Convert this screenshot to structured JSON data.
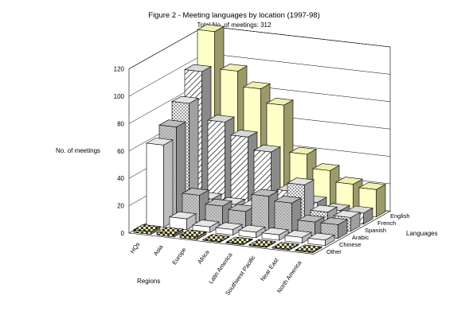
{
  "chart_data": {
    "type": "bar-3d",
    "title": "Figure 2 - Meeting languages by location (1997-98)",
    "subtitle": "Total No. of meetings: 312",
    "ylabel": "No. of meetings",
    "xlabel": "Regions",
    "zlabel": "Languages",
    "ylim": [
      0,
      120
    ],
    "yticks": [
      0,
      20,
      40,
      60,
      80,
      100,
      120
    ],
    "categories": [
      "HQs",
      "Asia",
      "Europe",
      "Africa",
      "Latin America",
      "Southwest Pacific",
      "Near East",
      "North America"
    ],
    "series": [
      {
        "name": "English",
        "values": [
          122,
          95,
          84,
          74,
          40,
          30,
          22,
          20
        ]
      },
      {
        "name": "French",
        "values": [
          98,
          63,
          54,
          45,
          18,
          12,
          8,
          8
        ]
      },
      {
        "name": "Spanish",
        "values": [
          80,
          12,
          10,
          10,
          10,
          30,
          12,
          10
        ]
      },
      {
        "name": "Arabic",
        "values": [
          68,
          20,
          14,
          12,
          25,
          22,
          10,
          10
        ]
      },
      {
        "name": "Chinese",
        "values": [
          60,
          8,
          4,
          4,
          4,
          4,
          4,
          4
        ]
      },
      {
        "name": "Other",
        "values": [
          2,
          2,
          2,
          0,
          0,
          0,
          0,
          0
        ]
      }
    ]
  }
}
